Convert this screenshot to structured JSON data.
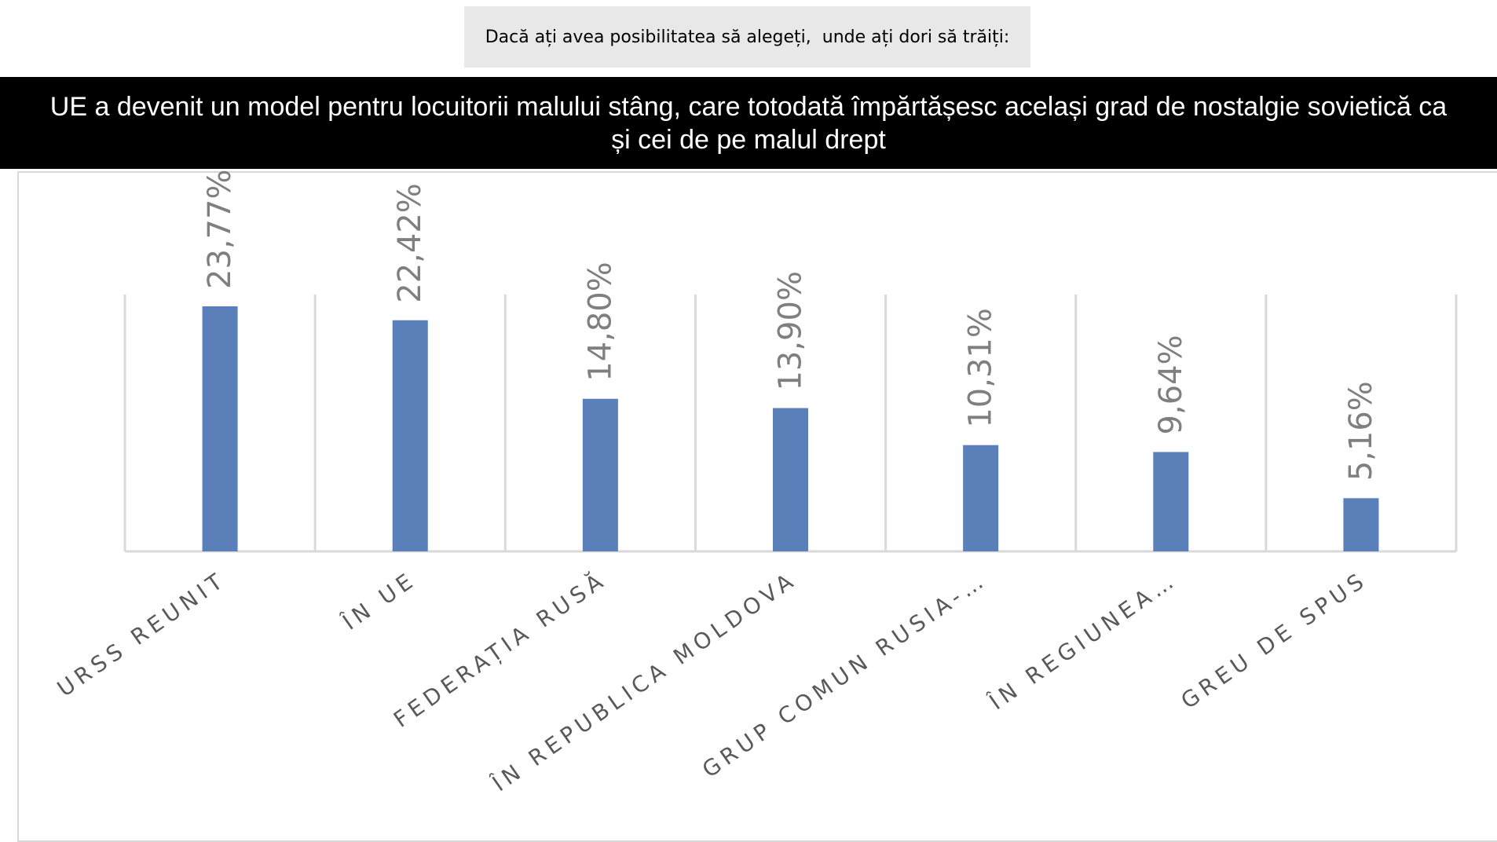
{
  "question": "Dacă ați avea posibilitatea să alegeți,  unde ați dori să trăiți:",
  "headline": "UE a devenit un model pentru locuitorii malului stâng, care totodată împărtășesc același grad de nostalgie sovietică ca și cei de pe malul drept",
  "colors": {
    "bar": "#5b7fb8",
    "grid": "#d9d9d9",
    "value_label": "#7f7f7f",
    "category_label": "#595959",
    "banner_bg": "#000000",
    "question_bg": "#e8e8e8"
  },
  "chart_data": {
    "type": "bar",
    "categories": [
      "URSS REUNIT",
      "ÎN UE",
      "FEDERAȚIA RUSĂ",
      "ÎN REPUBLICA MOLDOVA",
      "GRUP COMUN RUSIA-…",
      "ÎN  REGIUNEA…",
      "GREU DE SPUS"
    ],
    "values": [
      23.77,
      22.42,
      14.8,
      13.9,
      10.31,
      9.64,
      5.16
    ],
    "value_labels": [
      "23,77%",
      "22,42%",
      "14,80%",
      "13,90%",
      "10,31%",
      "9,64%",
      "5,16%"
    ],
    "ylim": [
      0,
      24.8
    ],
    "grid": "vertical",
    "legend": "none"
  }
}
